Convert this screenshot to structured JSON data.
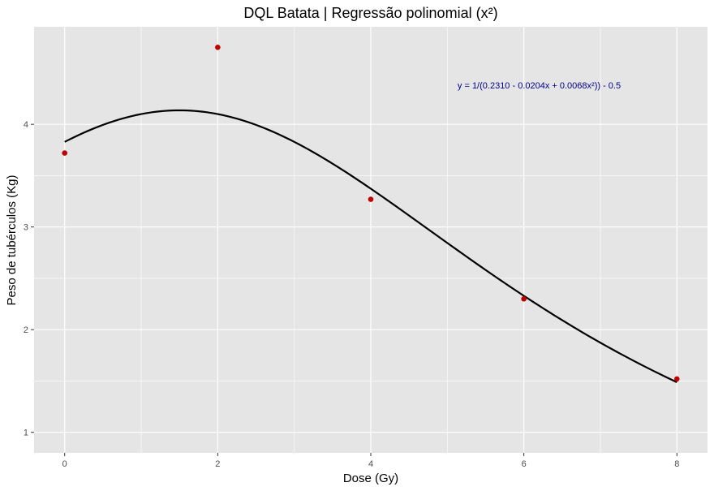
{
  "chart_data": {
    "type": "scatter",
    "title": "DQL Batata | Regressão polinomial (x²)",
    "xlabel": "Dose (Gy)",
    "ylabel": "Peso de tubérculos (Kg)",
    "xlim": [
      -0.4,
      8.4
    ],
    "ylim": [
      0.8,
      4.95
    ],
    "x_ticks": [
      0,
      2,
      4,
      6,
      8
    ],
    "x_tick_labels": [
      "0",
      "2",
      "4",
      "6",
      "8"
    ],
    "y_ticks": [
      1,
      2,
      3,
      4
    ],
    "y_tick_labels": [
      "1",
      "2",
      "3",
      "4"
    ],
    "grid": true,
    "series": [
      {
        "kind": "points",
        "color": "#c00000",
        "x": [
          0,
          2,
          4,
          6,
          8
        ],
        "y": [
          3.72,
          4.75,
          3.27,
          2.3,
          1.52
        ]
      },
      {
        "kind": "fitted-curve",
        "color": "#000000",
        "model": {
          "a": 0.231,
          "b": -0.0204,
          "c": 0.0068,
          "offset": -0.5
        },
        "x_range": [
          0,
          8
        ]
      }
    ],
    "annotation": {
      "text": "y = 1/(0.2310 - 0.0204x + 0.0068x²)) - 0.5",
      "x": 6.2,
      "y": 4.35,
      "color": "#00008b"
    },
    "panel_background": "#e5e5e5",
    "grid_color": "#ffffff"
  }
}
